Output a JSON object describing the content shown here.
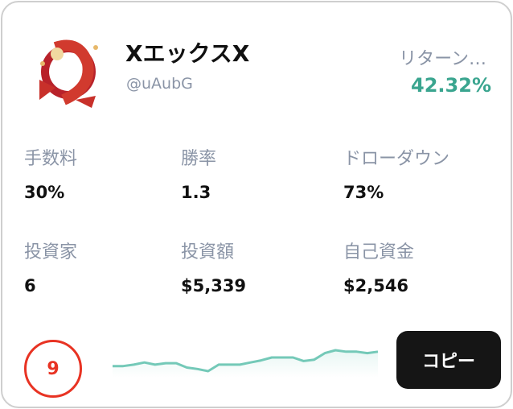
{
  "trader": {
    "name": "XエックスX",
    "handle": "@uAubG",
    "return_label": "リターン…",
    "return_value": "42.32%",
    "return_color": "#3aa58f"
  },
  "stats": [
    {
      "label": "手数料",
      "value": "30%"
    },
    {
      "label": "勝率",
      "value": "1.3"
    },
    {
      "label": "ドローダウン",
      "value": "73%"
    },
    {
      "label": "投資家",
      "value": "6"
    },
    {
      "label": "投資額",
      "value": "$5,339"
    },
    {
      "label": "自己資金",
      "value": "$2,546"
    }
  ],
  "rank": "9",
  "sparkline": [
    8,
    8,
    10,
    13,
    10,
    12,
    12,
    6,
    4,
    1,
    10,
    10,
    10,
    13,
    16,
    20,
    20,
    20,
    15,
    17,
    26,
    30,
    28,
    28,
    26,
    28
  ],
  "copy_button": "コピー"
}
